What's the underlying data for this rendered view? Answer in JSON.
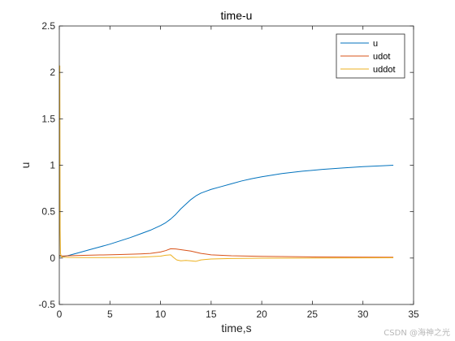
{
  "watermark": "CSDN @海神之光",
  "chart_data": {
    "type": "line",
    "title": "time-u",
    "xlabel": "time,s",
    "ylabel": "u",
    "xlim": [
      0,
      35
    ],
    "ylim": [
      -0.5,
      2.5
    ],
    "xticks": [
      0,
      5,
      10,
      15,
      20,
      25,
      30,
      35
    ],
    "yticks": [
      -0.5,
      0,
      0.5,
      1,
      1.5,
      2,
      2.5
    ],
    "xtick_labels": [
      "0",
      "5",
      "10",
      "15",
      "20",
      "25",
      "30",
      "35"
    ],
    "ytick_labels": [
      "-0.5",
      "0",
      "0.5",
      "1",
      "1.5",
      "2",
      "2.5"
    ],
    "grid": false,
    "legend_position": "top-right",
    "series": [
      {
        "name": "u",
        "color": "#0072BD",
        "x": [
          0,
          0.5,
          1,
          2,
          3,
          4,
          5,
          6,
          7,
          8,
          9,
          10,
          10.5,
          11,
          11.5,
          12,
          12.5,
          13,
          13.5,
          14,
          15,
          16,
          17,
          18,
          19,
          20,
          22,
          24,
          26,
          28,
          30,
          32,
          33
        ],
        "y": [
          0.02,
          0.018,
          0.03,
          0.06,
          0.09,
          0.12,
          0.15,
          0.185,
          0.22,
          0.26,
          0.3,
          0.35,
          0.38,
          0.42,
          0.47,
          0.53,
          0.58,
          0.63,
          0.67,
          0.7,
          0.74,
          0.77,
          0.8,
          0.83,
          0.855,
          0.875,
          0.91,
          0.935,
          0.955,
          0.97,
          0.985,
          0.995,
          1.0
        ]
      },
      {
        "name": "udot",
        "color": "#D95319",
        "x": [
          0,
          0.3,
          1,
          2,
          4,
          6,
          8,
          9,
          10,
          10.5,
          11,
          11.5,
          12,
          13,
          14,
          15,
          17,
          20,
          25,
          30,
          33
        ],
        "y": [
          0.03,
          0.022,
          0.025,
          0.028,
          0.033,
          0.038,
          0.045,
          0.05,
          0.065,
          0.08,
          0.1,
          0.098,
          0.09,
          0.075,
          0.05,
          0.035,
          0.025,
          0.018,
          0.012,
          0.009,
          0.008
        ]
      },
      {
        "name": "uddot",
        "color": "#EDB120",
        "x": [
          0,
          0.02,
          0.05,
          0.08,
          0.12,
          0.2,
          0.5,
          1,
          3,
          6,
          8,
          9,
          10,
          10.5,
          11,
          11.3,
          11.6,
          12,
          12.5,
          13,
          13.5,
          14,
          15,
          17,
          20,
          25,
          30,
          33
        ],
        "y": [
          0.0,
          2.07,
          2.07,
          0.3,
          0.05,
          0.015,
          0.008,
          0.006,
          0.005,
          0.006,
          0.01,
          0.015,
          0.02,
          0.03,
          0.035,
          0.005,
          -0.02,
          -0.03,
          -0.025,
          -0.03,
          -0.035,
          -0.02,
          -0.01,
          -0.005,
          -0.002,
          0.0,
          0.002,
          0.003
        ]
      }
    ]
  }
}
